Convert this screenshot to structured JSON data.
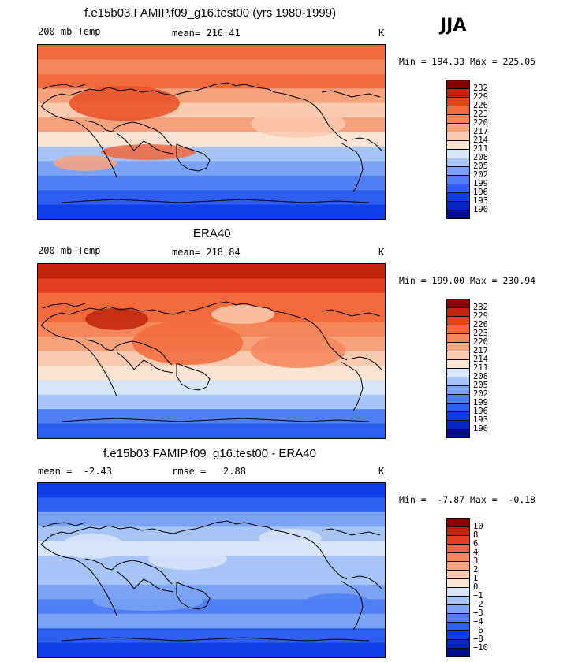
{
  "season": "JJA",
  "panels": [
    {
      "title": "f.e15b03.FAMIP.f09_g16.test00 (yrs 1980-1999)",
      "left_label": "200 mb Temp",
      "mean_label": "mean= 216.41",
      "rmse_label": "",
      "units": "K",
      "range_text": "Min = 194.33 Max = 225.05",
      "colorbar_labels": [
        "232",
        "229",
        "226",
        "223",
        "220",
        "217",
        "214",
        "211",
        "208",
        "205",
        "202",
        "199",
        "196",
        "193",
        "190"
      ],
      "bands": [
        "#f26a3c",
        "#f5865a",
        "#f26a3c",
        "#f8a27d",
        "#fccab0",
        "#f8a27d",
        "#fde4d2",
        "#a7c4f7",
        "#7aa3f5",
        "#4f7ff2",
        "#2d5ef0",
        "#0d3fe8"
      ]
    },
    {
      "title": "ERA40",
      "left_label": "200 mb Temp",
      "mean_label": "mean= 218.84",
      "rmse_label": "",
      "units": "K",
      "range_text": "Min = 199.00 Max = 230.94",
      "colorbar_labels": [
        "232",
        "229",
        "226",
        "223",
        "220",
        "217",
        "214",
        "211",
        "208",
        "205",
        "202",
        "199",
        "196",
        "193",
        "190"
      ],
      "bands": [
        "#c0250a",
        "#e0401f",
        "#f26a3c",
        "#f26a3c",
        "#f5865a",
        "#f8a27d",
        "#fccab0",
        "#fde4d2",
        "#d7e5fb",
        "#a7c4f7",
        "#4f7ff2",
        "#2d5ef0"
      ]
    },
    {
      "title": "f.e15b03.FAMIP.f09_g16.test00 - ERA40",
      "left_label": "mean =  -2.43",
      "mean_label": "rmse =   2.88",
      "rmse_label": "",
      "units": "K",
      "range_text": "Min =  -7.87 Max =  -0.18",
      "colorbar_labels": [
        "10",
        "8",
        "6",
        "4",
        "3",
        "2",
        "1",
        "0",
        "−1",
        "−2",
        "−3",
        "−4",
        "−6",
        "−8",
        "−10"
      ],
      "bands": [
        "#0d3fe8",
        "#2d5ef0",
        "#7aa3f5",
        "#a7c4f7",
        "#d7e5fb",
        "#a7c4f7",
        "#a7c4f7",
        "#7aa3f5",
        "#4f7ff2",
        "#7aa3f5",
        "#2d5ef0",
        "#0d3fe8"
      ]
    }
  ],
  "colorbar_colors": [
    "#8a0000",
    "#c0250a",
    "#e0401f",
    "#f26a3c",
    "#f5865a",
    "#f8a27d",
    "#fccab0",
    "#fde4d2",
    "#d7e5fb",
    "#a7c4f7",
    "#7aa3f5",
    "#4f7ff2",
    "#2d5ef0",
    "#0d3fe8",
    "#0626c0",
    "#000c8c"
  ]
}
